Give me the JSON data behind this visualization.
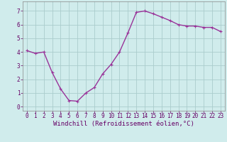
{
  "x": [
    0,
    1,
    2,
    3,
    4,
    5,
    6,
    7,
    8,
    9,
    10,
    11,
    12,
    13,
    14,
    15,
    16,
    17,
    18,
    19,
    20,
    21,
    22,
    23
  ],
  "y": [
    4.1,
    3.9,
    4.0,
    2.5,
    1.3,
    0.45,
    0.4,
    1.0,
    1.4,
    2.4,
    3.1,
    4.0,
    5.4,
    6.9,
    7.0,
    6.8,
    6.55,
    6.3,
    6.0,
    5.9,
    5.9,
    5.8,
    5.8,
    5.5
  ],
  "line_color": "#993399",
  "marker": "+",
  "bg_color": "#d0ecec",
  "grid_color": "#aacccc",
  "xlabel": "Windchill (Refroidissement éolien,°C)",
  "xlim": [
    -0.5,
    23.5
  ],
  "ylim": [
    -0.3,
    7.7
  ],
  "yticks": [
    0,
    1,
    2,
    3,
    4,
    5,
    6,
    7
  ],
  "xticks": [
    0,
    1,
    2,
    3,
    4,
    5,
    6,
    7,
    8,
    9,
    10,
    11,
    12,
    13,
    14,
    15,
    16,
    17,
    18,
    19,
    20,
    21,
    22,
    23
  ],
  "tick_fontsize": 5.5,
  "xlabel_fontsize": 6.5,
  "line_width": 1.0,
  "marker_size": 3.5
}
